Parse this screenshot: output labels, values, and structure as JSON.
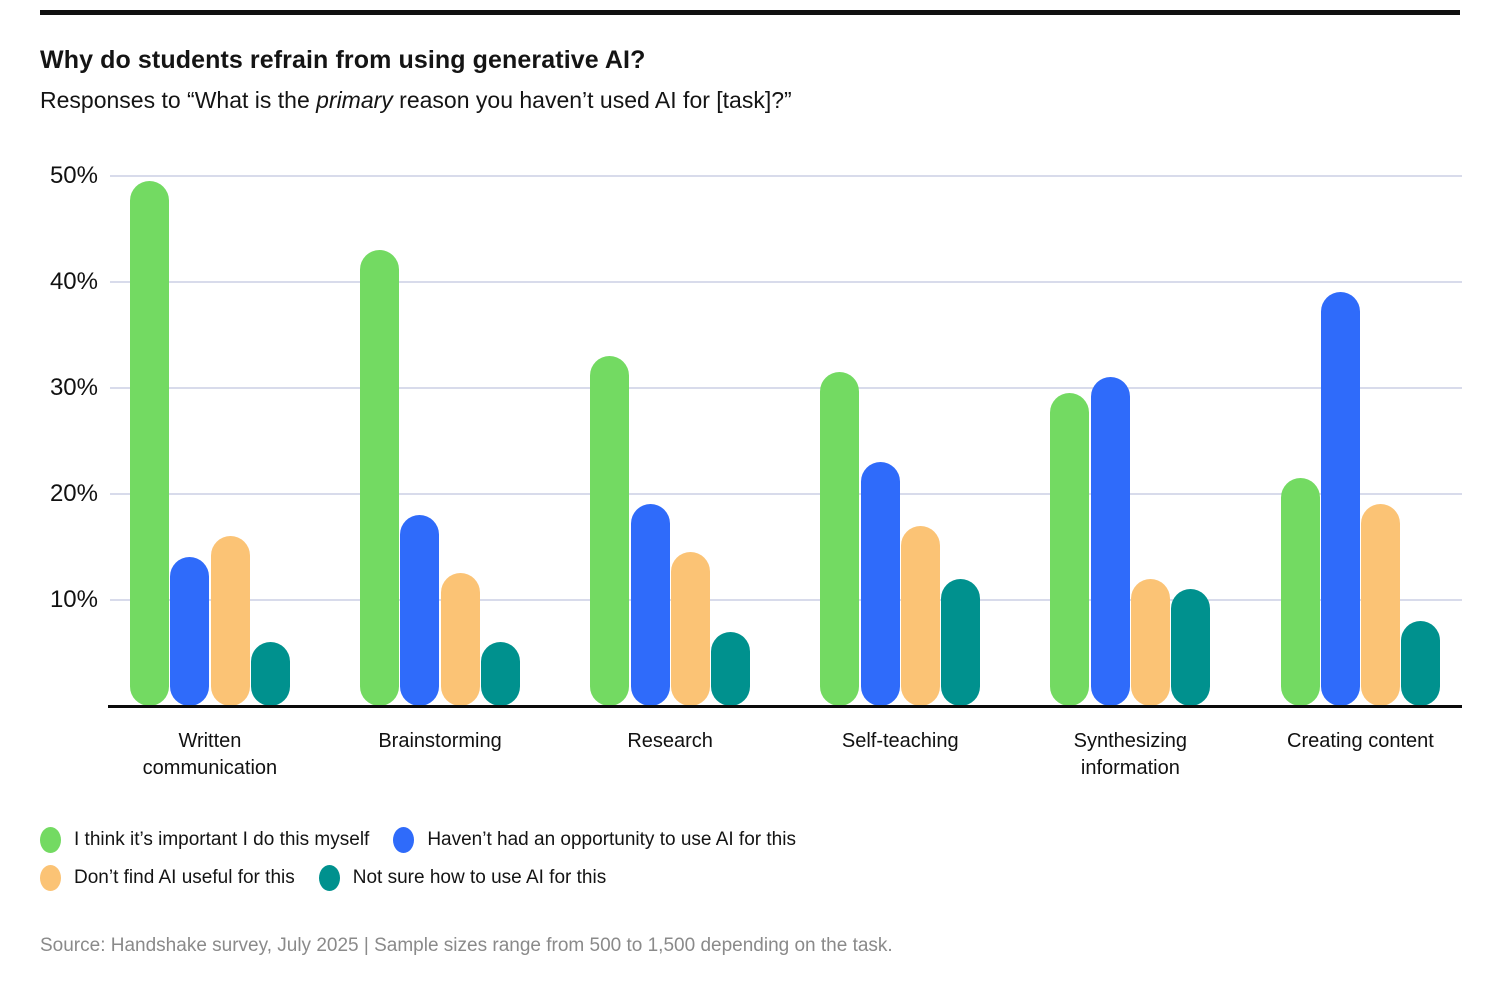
{
  "header": {
    "title": "Why do students refrain from using generative AI?",
    "subtitle_prefix": "Responses to “What is the ",
    "subtitle_italic": "primary",
    "subtitle_suffix": " reason you haven’t used AI for [task]?”"
  },
  "axis": {
    "y_ticks": [
      {
        "label": "50%",
        "value": 50
      },
      {
        "label": "40%",
        "value": 40
      },
      {
        "label": "30%",
        "value": 30
      },
      {
        "label": "20%",
        "value": 20
      },
      {
        "label": "10%",
        "value": 10
      }
    ]
  },
  "chart_data": {
    "type": "bar",
    "title": "Why do students refrain from using generative AI?",
    "categories": [
      "Written communication",
      "Brainstorming",
      "Research",
      "Self-teaching",
      "Synthesizing information",
      "Creating content"
    ],
    "series": [
      {
        "name": "I think it’s important I do this myself",
        "color": "#73DA62",
        "values": [
          49.5,
          43,
          33,
          31.5,
          29.5,
          21.5
        ]
      },
      {
        "name": "Haven’t had an opportunity to use AI for this",
        "color": "#2F6BFA",
        "values": [
          14,
          18,
          19,
          23,
          31,
          39
        ]
      },
      {
        "name": "Don’t find AI useful for this",
        "color": "#FBC375",
        "values": [
          16,
          12.5,
          14.5,
          17,
          12,
          19
        ]
      },
      {
        "name": "Not sure how to use AI for this",
        "color": "#00918E",
        "values": [
          6,
          6,
          7,
          12,
          11,
          8
        ]
      }
    ],
    "xlabel": "",
    "ylabel": "",
    "ylim": [
      0,
      52
    ],
    "grid": true,
    "gridline_color": "#D8DBEB",
    "legend_position": "bottom",
    "legend_rows": [
      [
        0,
        1
      ],
      [
        2,
        3
      ]
    ]
  },
  "footer": {
    "source": "Source: Handshake survey, July 2025 | Sample sizes range from 500 to 1,500 depending on the task."
  }
}
